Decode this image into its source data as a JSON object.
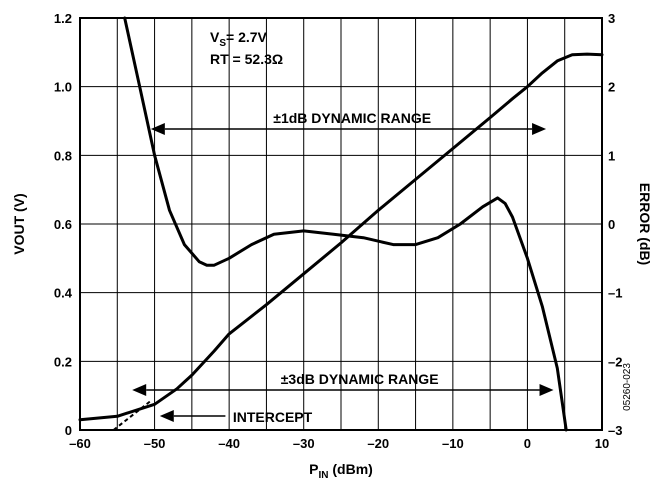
{
  "chart_data": {
    "type": "line",
    "xlabel_main": "P",
    "xlabel_sub": "IN",
    "xlabel_unit": " (dBm)",
    "ylabel_left": "VOUT (V)",
    "ylabel_right": "ERROR (dB)",
    "xlim": [
      -60,
      10
    ],
    "ylim_left": [
      0,
      1.2
    ],
    "ylim_right": [
      -3,
      3
    ],
    "x_ticks": [
      "–60",
      "–50",
      "–40",
      "–30",
      "–20",
      "–10",
      "0",
      "10"
    ],
    "y_left_ticks": [
      "0",
      "0.2",
      "0.4",
      "0.6",
      "0.8",
      "1.0",
      "1.2"
    ],
    "y_right_ticks": [
      "–3",
      "–2",
      "–1",
      "0",
      "1",
      "2",
      "3"
    ],
    "grid": "vertical lines every 5 dBm; horizontal lines every 0.2 V",
    "conditions": {
      "vs_main": "V",
      "vs_sub": "S",
      "vs_value": "= 2.7V",
      "rt": "RT = 52.3Ω"
    },
    "annotations": {
      "range_1db": "±1dB DYNAMIC RANGE",
      "range_3db": "±3dB DYNAMIC RANGE",
      "intercept": "INTERCEPT"
    },
    "figure_id": "05260-023",
    "series": [
      {
        "axis": "left",
        "x": [
          -60,
          -55,
          -50,
          -47,
          -45,
          -42,
          -40,
          -35,
          -30,
          -25,
          -20,
          -15,
          -10,
          -5,
          -2,
          0,
          2,
          4,
          6,
          8,
          10
        ],
        "y": [
          0.03,
          0.04,
          0.075,
          0.12,
          0.16,
          0.23,
          0.28,
          0.365,
          0.455,
          0.545,
          0.64,
          0.73,
          0.82,
          0.91,
          0.965,
          1.0,
          1.04,
          1.075,
          1.093,
          1.095,
          1.093
        ]
      },
      {
        "axis": "right",
        "x": [
          -54,
          -52,
          -50,
          -48,
          -46,
          -44,
          -43,
          -42,
          -40,
          -37,
          -34,
          -30,
          -26,
          -22,
          -18,
          -15,
          -12,
          -9,
          -6,
          -4,
          -3,
          -2,
          0,
          2,
          4,
          5.2
        ],
        "y": [
          3.0,
          2.0,
          1.0,
          0.2,
          -0.3,
          -0.55,
          -0.6,
          -0.6,
          -0.5,
          -0.3,
          -0.15,
          -0.1,
          -0.15,
          -0.2,
          -0.3,
          -0.3,
          -0.2,
          0.0,
          0.25,
          0.38,
          0.3,
          0.1,
          -0.5,
          -1.2,
          -2.1,
          -3.0
        ]
      }
    ],
    "intercept_line": {
      "x": [
        -55.5,
        -50.5
      ],
      "y": [
        0,
        0.085
      ]
    },
    "range_1db": [
      -50.5,
      2.5
    ],
    "range_3db": [
      -53,
      3.5
    ]
  }
}
